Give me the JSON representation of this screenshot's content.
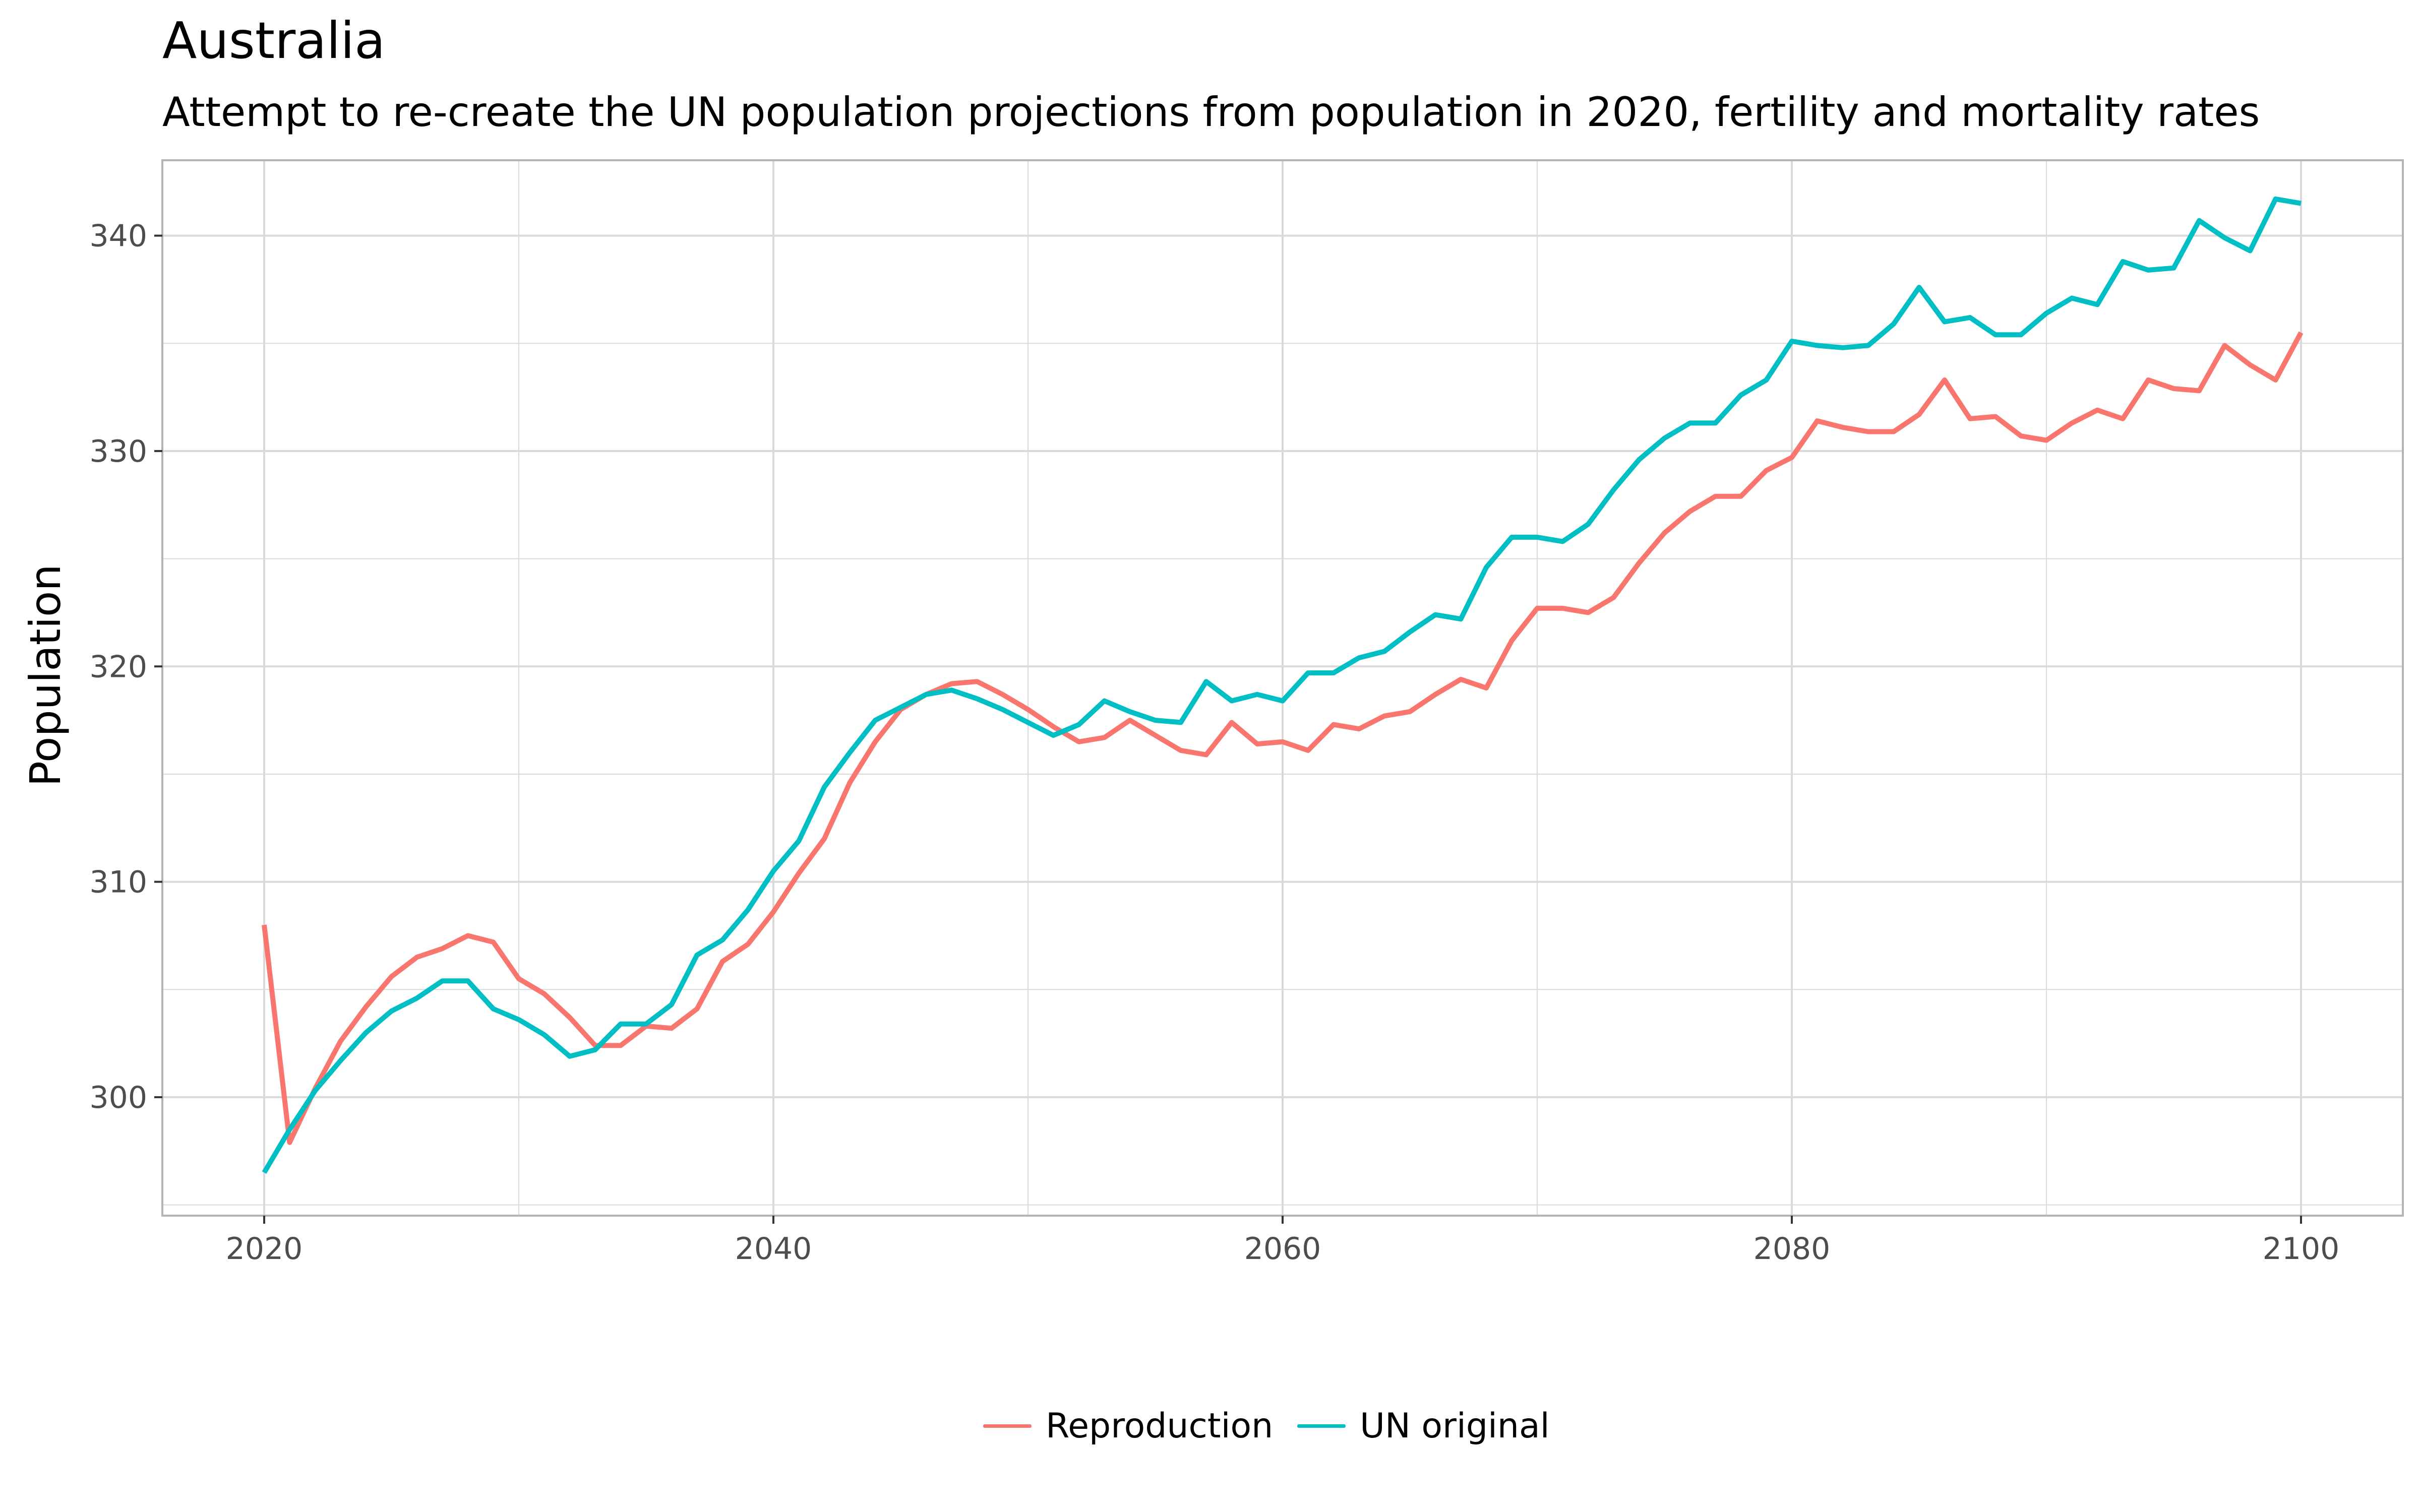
{
  "colors": {
    "reproduction": "#F8766D",
    "un_original": "#00BFC4",
    "grid": "#D9D9D9",
    "panel_border": "#B3B3B3",
    "tick_text": "#4D4D4D"
  },
  "chart_data": {
    "type": "line",
    "title": "Australia",
    "subtitle": "Attempt to re-create the UN population projections from population in 2020, fertility and mortality rates",
    "xlabel": "",
    "ylabel": "Population",
    "xlim": [
      2016,
      2104
    ],
    "ylim": [
      294.5,
      343.5
    ],
    "grid": true,
    "legend_position": "bottom",
    "x_ticks": [
      {
        "value": 2020,
        "label": "2020"
      },
      {
        "value": 2040,
        "label": "2040"
      },
      {
        "value": 2060,
        "label": "2060"
      },
      {
        "value": 2080,
        "label": "2080"
      },
      {
        "value": 2100,
        "label": "2100"
      }
    ],
    "y_ticks": [
      {
        "value": 300,
        "label": "300"
      },
      {
        "value": 310,
        "label": "310"
      },
      {
        "value": 320,
        "label": "320"
      },
      {
        "value": 330,
        "label": "330"
      },
      {
        "value": 340,
        "label": "340"
      }
    ],
    "x": [
      2020,
      2021,
      2022,
      2023,
      2024,
      2025,
      2026,
      2027,
      2028,
      2029,
      2030,
      2031,
      2032,
      2033,
      2034,
      2035,
      2036,
      2037,
      2038,
      2039,
      2040,
      2041,
      2042,
      2043,
      2044,
      2045,
      2046,
      2047,
      2048,
      2049,
      2050,
      2051,
      2052,
      2053,
      2054,
      2055,
      2056,
      2057,
      2058,
      2059,
      2060,
      2061,
      2062,
      2063,
      2064,
      2065,
      2066,
      2067,
      2068,
      2069,
      2070,
      2071,
      2072,
      2073,
      2074,
      2075,
      2076,
      2077,
      2078,
      2079,
      2080,
      2081,
      2082,
      2083,
      2084,
      2085,
      2086,
      2087,
      2088,
      2089,
      2090,
      2091,
      2092,
      2093,
      2094,
      2095,
      2096,
      2097,
      2098,
      2099,
      2100
    ],
    "series": [
      {
        "name": "Reproduction",
        "values": [
          308.0,
          297.9,
          300.4,
          302.6,
          304.2,
          305.6,
          306.5,
          306.9,
          307.5,
          307.2,
          305.5,
          304.8,
          303.7,
          302.4,
          302.4,
          303.3,
          303.2,
          304.1,
          306.3,
          307.1,
          308.6,
          310.4,
          312.0,
          314.6,
          316.5,
          318.0,
          318.7,
          319.2,
          319.3,
          318.7,
          318.0,
          317.2,
          316.5,
          316.7,
          317.5,
          316.8,
          316.1,
          315.9,
          317.4,
          316.4,
          316.5,
          316.1,
          317.3,
          317.1,
          317.7,
          317.9,
          318.7,
          319.4,
          319.0,
          321.2,
          322.7,
          322.7,
          322.5,
          323.2,
          324.8,
          326.2,
          327.2,
          327.9,
          327.9,
          329.1,
          329.7,
          331.4,
          331.1,
          330.9,
          330.9,
          331.7,
          333.3,
          331.5,
          331.6,
          330.7,
          330.5,
          331.3,
          331.9,
          331.5,
          333.3,
          332.9,
          332.8,
          334.9,
          334.0,
          333.3,
          335.5
        ]
      },
      {
        "name": "UN original",
        "values": [
          296.5,
          298.5,
          300.3,
          301.7,
          303.0,
          304.0,
          304.6,
          305.4,
          305.4,
          304.1,
          303.6,
          302.9,
          301.9,
          302.2,
          303.4,
          303.4,
          304.3,
          306.6,
          307.3,
          308.7,
          310.5,
          311.9,
          314.4,
          316.0,
          317.5,
          318.1,
          318.7,
          318.9,
          318.5,
          318.0,
          317.4,
          316.8,
          317.3,
          318.4,
          317.9,
          317.5,
          317.4,
          319.3,
          318.4,
          318.7,
          318.4,
          319.7,
          319.7,
          320.4,
          320.7,
          321.6,
          322.4,
          322.2,
          324.6,
          326.0,
          326.0,
          325.8,
          326.6,
          328.2,
          329.6,
          330.6,
          331.3,
          331.3,
          332.6,
          333.3,
          335.1,
          334.9,
          334.8,
          334.9,
          335.9,
          337.6,
          336.0,
          336.2,
          335.4,
          335.4,
          336.4,
          337.1,
          336.8,
          338.8,
          338.4,
          338.5,
          340.7,
          339.9,
          339.3,
          341.7,
          341.5
        ]
      }
    ]
  }
}
